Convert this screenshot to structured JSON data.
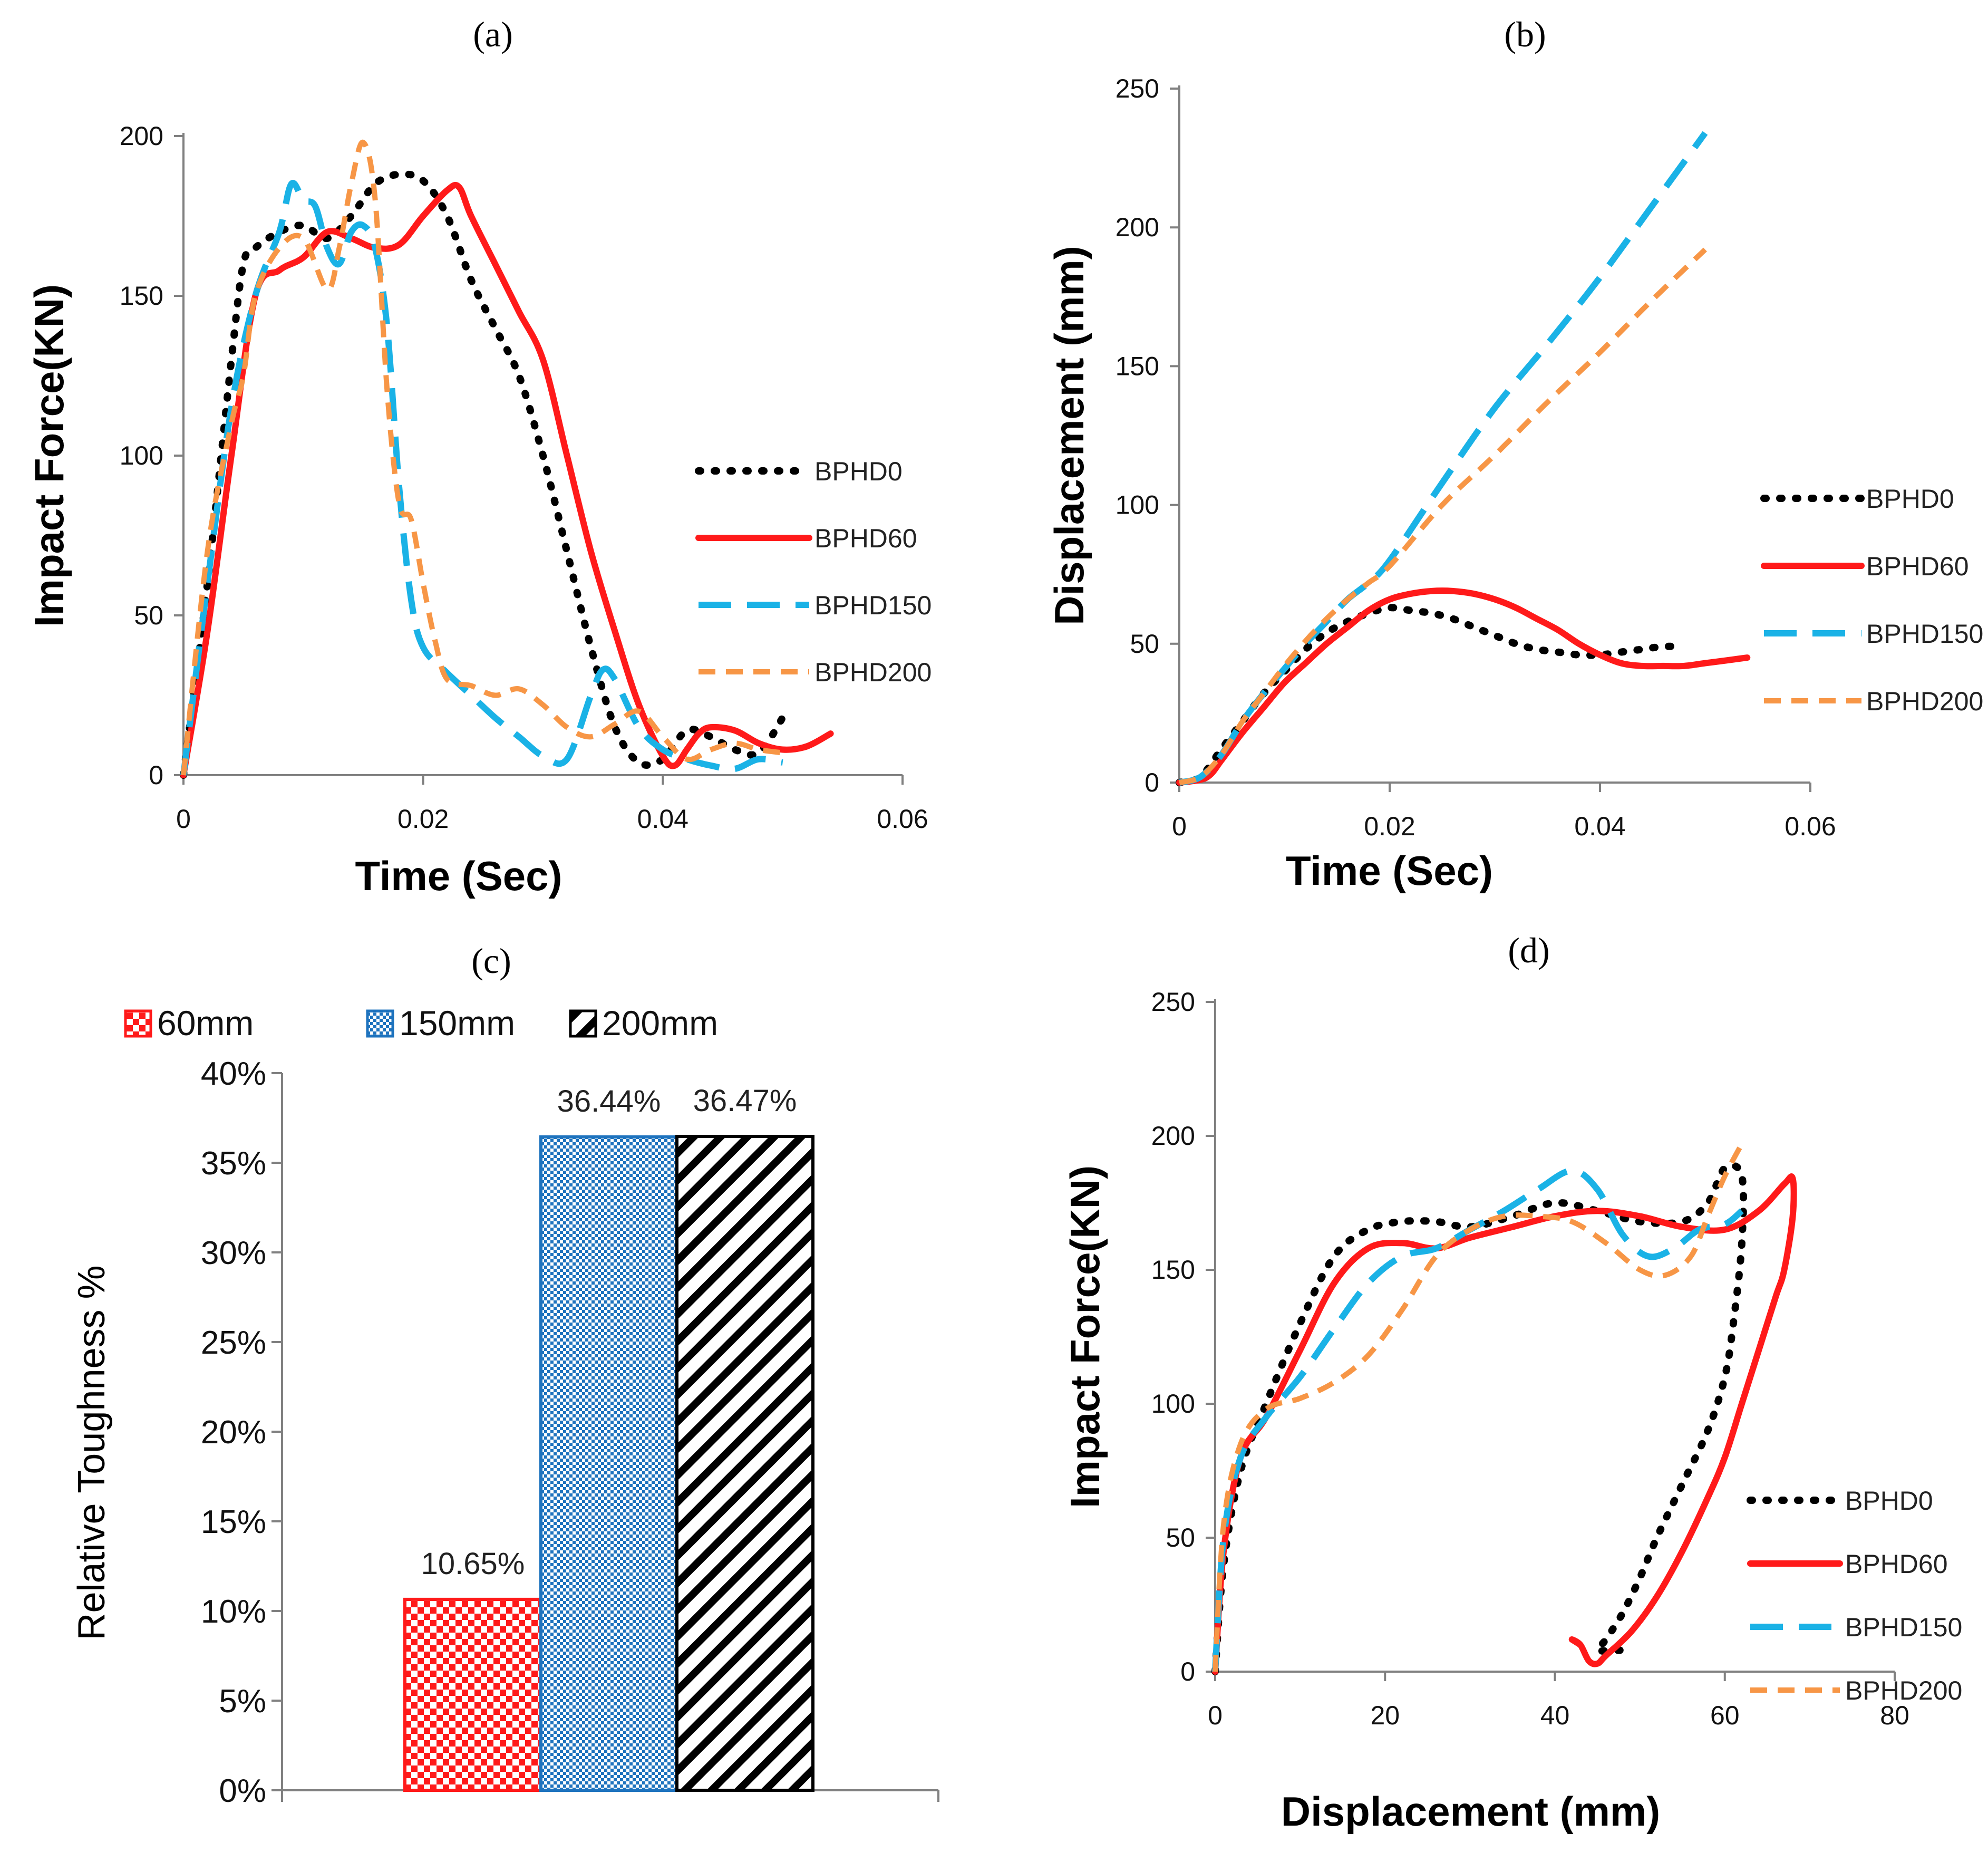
{
  "chart_data": [
    {
      "panel": "(a)",
      "type": "line",
      "xlabel": "Time (Sec)",
      "ylabel": "Impact Force(KN)",
      "xlim": [
        0,
        0.06
      ],
      "ylim": [
        0,
        200
      ],
      "xticks": [
        "0",
        "0.02",
        "0.04",
        "0.06"
      ],
      "yticks": [
        "0",
        "50",
        "100",
        "150",
        "200"
      ],
      "series": [
        {
          "name": "BPHD0",
          "color": "#000000",
          "style": "dotted",
          "x": [
            0,
            0.002,
            0.004,
            0.005,
            0.006,
            0.008,
            0.01,
            0.012,
            0.014,
            0.016,
            0.018,
            0.02,
            0.022,
            0.024,
            0.026,
            0.028,
            0.03,
            0.032,
            0.034,
            0.036,
            0.038,
            0.04,
            0.042,
            0.044,
            0.046,
            0.048,
            0.05
          ],
          "y": [
            0,
            60,
            130,
            160,
            165,
            170,
            172,
            168,
            175,
            185,
            188,
            186,
            175,
            155,
            140,
            125,
            100,
            70,
            40,
            15,
            4,
            5,
            14,
            12,
            8,
            7,
            18
          ]
        },
        {
          "name": "BPHD60",
          "color": "#ff1a1a",
          "style": "solid",
          "x": [
            0,
            0.002,
            0.004,
            0.006,
            0.008,
            0.01,
            0.012,
            0.014,
            0.016,
            0.018,
            0.02,
            0.022,
            0.023,
            0.024,
            0.026,
            0.028,
            0.03,
            0.032,
            0.034,
            0.036,
            0.038,
            0.04,
            0.041,
            0.042,
            0.043,
            0.044,
            0.046,
            0.048,
            0.05,
            0.052,
            0.054
          ],
          "y": [
            0,
            45,
            100,
            150,
            158,
            162,
            170,
            168,
            165,
            166,
            175,
            183,
            184,
            175,
            160,
            145,
            130,
            100,
            70,
            45,
            22,
            6,
            3,
            8,
            13,
            15,
            14,
            10,
            8,
            9,
            13
          ]
        },
        {
          "name": "BPHD150",
          "color": "#1ab2e6",
          "style": "dashed",
          "x": [
            0,
            0.002,
            0.004,
            0.006,
            0.008,
            0.009,
            0.01,
            0.011,
            0.012,
            0.013,
            0.014,
            0.015,
            0.016,
            0.017,
            0.018,
            0.019,
            0.02,
            0.022,
            0.024,
            0.026,
            0.028,
            0.03,
            0.032,
            0.034,
            0.035,
            0.036,
            0.038,
            0.04,
            0.042,
            0.044,
            0.046,
            0.048,
            0.05
          ],
          "y": [
            0,
            60,
            115,
            150,
            170,
            185,
            180,
            178,
            165,
            160,
            170,
            172,
            165,
            140,
            90,
            55,
            40,
            32,
            25,
            18,
            12,
            6,
            5,
            25,
            33,
            30,
            15,
            8,
            5,
            3,
            2,
            5,
            4
          ]
        },
        {
          "name": "BPHD200",
          "color": "#f79646",
          "style": "dashed-fine",
          "x": [
            0,
            0.002,
            0.004,
            0.005,
            0.006,
            0.008,
            0.01,
            0.012,
            0.013,
            0.014,
            0.015,
            0.016,
            0.017,
            0.018,
            0.019,
            0.02,
            0.021,
            0.022,
            0.024,
            0.026,
            0.028,
            0.03,
            0.032,
            0.034,
            0.036,
            0.038,
            0.04,
            0.042,
            0.044,
            0.046,
            0.048,
            0.05
          ],
          "y": [
            0,
            70,
            110,
            125,
            150,
            165,
            168,
            152,
            165,
            185,
            198,
            180,
            120,
            85,
            80,
            60,
            42,
            30,
            28,
            25,
            27,
            22,
            15,
            12,
            16,
            20,
            12,
            5,
            8,
            10,
            8,
            7
          ]
        }
      ]
    },
    {
      "panel": "(b)",
      "type": "line",
      "xlabel": "Time (Sec)",
      "ylabel": "Displacement (mm)",
      "xlim": [
        0,
        0.06
      ],
      "ylim": [
        0,
        250
      ],
      "xticks": [
        "0",
        "0.02",
        "0.04",
        "0.06"
      ],
      "yticks": [
        "0",
        "50",
        "100",
        "150",
        "200",
        "250"
      ],
      "series": [
        {
          "name": "BPHD0",
          "color": "#000000",
          "style": "dotted",
          "x": [
            0,
            0.002,
            0.004,
            0.006,
            0.008,
            0.01,
            0.012,
            0.014,
            0.016,
            0.018,
            0.02,
            0.022,
            0.024,
            0.026,
            0.028,
            0.03,
            0.032,
            0.034,
            0.036,
            0.038,
            0.04,
            0.042,
            0.044,
            0.046,
            0.048
          ],
          "y": [
            0,
            2,
            12,
            22,
            32,
            40,
            48,
            54,
            58,
            61,
            63,
            62,
            61,
            59,
            56,
            53,
            50,
            48,
            47,
            46,
            46,
            47,
            48,
            49,
            49
          ]
        },
        {
          "name": "BPHD60",
          "color": "#ff1a1a",
          "style": "solid",
          "x": [
            0,
            0.002,
            0.003,
            0.004,
            0.006,
            0.008,
            0.01,
            0.012,
            0.014,
            0.016,
            0.018,
            0.02,
            0.022,
            0.024,
            0.026,
            0.028,
            0.03,
            0.032,
            0.034,
            0.036,
            0.038,
            0.04,
            0.042,
            0.044,
            0.046,
            0.048,
            0.05,
            0.052,
            0.054
          ],
          "y": [
            0,
            1,
            3,
            8,
            18,
            27,
            36,
            43,
            50,
            56,
            62,
            66,
            68,
            69,
            69,
            68,
            66,
            63,
            59,
            55,
            50,
            46,
            43,
            42,
            42,
            42,
            43,
            44,
            45
          ]
        },
        {
          "name": "BPHD150",
          "color": "#1ab2e6",
          "style": "dashed",
          "x": [
            0,
            0.002,
            0.004,
            0.006,
            0.008,
            0.01,
            0.012,
            0.014,
            0.016,
            0.018,
            0.02,
            0.025,
            0.03,
            0.035,
            0.04,
            0.045,
            0.05
          ],
          "y": [
            0,
            2,
            10,
            22,
            32,
            41,
            50,
            58,
            66,
            72,
            80,
            108,
            135,
            158,
            182,
            208,
            234
          ]
        },
        {
          "name": "BPHD200",
          "color": "#f79646",
          "style": "dashed-fine",
          "x": [
            0,
            0.002,
            0.004,
            0.006,
            0.008,
            0.01,
            0.012,
            0.014,
            0.016,
            0.018,
            0.02,
            0.025,
            0.03,
            0.035,
            0.04,
            0.045,
            0.05
          ],
          "y": [
            0,
            2,
            10,
            22,
            32,
            42,
            51,
            59,
            66,
            72,
            78,
            100,
            118,
            137,
            155,
            174,
            192
          ]
        }
      ]
    },
    {
      "panel": "(c)",
      "type": "bar",
      "ylabel": "Relative Toughness %",
      "ylim": [
        0,
        40
      ],
      "yticks": [
        "0%",
        "5%",
        "10%",
        "15%",
        "20%",
        "25%",
        "30%",
        "35%",
        "40%"
      ],
      "series": [
        {
          "name": "60mm",
          "value": 10.65,
          "label": "10.65%",
          "color": "#ff1a1a",
          "pattern": "checker"
        },
        {
          "name": "150mm",
          "value": 36.44,
          "label": "36.44%",
          "color": "#1e73be",
          "pattern": "fine-checker"
        },
        {
          "name": "200mm",
          "value": 36.47,
          "label": "36.47%",
          "color": "#000000",
          "pattern": "diagonal"
        }
      ],
      "legend_position": "top"
    },
    {
      "panel": "(d)",
      "type": "line",
      "xlabel": "Displacement (mm)",
      "ylabel": "Impact Force(KN)",
      "xlim": [
        0,
        80
      ],
      "ylim": [
        0,
        250
      ],
      "xticks": [
        "0",
        "20",
        "40",
        "60",
        "80"
      ],
      "yticks": [
        "0",
        "50",
        "100",
        "150",
        "200",
        "250"
      ],
      "series": [
        {
          "name": "BPHD0",
          "color": "#000000",
          "style": "dotted",
          "x": [
            0,
            1,
            3,
            6,
            10,
            14,
            18,
            22,
            26,
            30,
            35,
            40,
            45,
            50,
            55,
            58,
            60,
            62,
            62,
            61,
            60,
            58,
            55,
            52,
            50,
            48,
            46,
            45,
            47,
            49
          ],
          "y": [
            0,
            40,
            75,
            100,
            130,
            155,
            165,
            168,
            168,
            166,
            170,
            175,
            172,
            168,
            168,
            175,
            188,
            185,
            160,
            130,
            110,
            90,
            70,
            50,
            35,
            22,
            12,
            8,
            8,
            8
          ]
        },
        {
          "name": "BPHD60",
          "color": "#ff1a1a",
          "style": "solid",
          "x": [
            0,
            1,
            3,
            6,
            10,
            14,
            18,
            22,
            26,
            30,
            35,
            40,
            45,
            50,
            55,
            60,
            64,
            67,
            68,
            68,
            67,
            66,
            64,
            62,
            60,
            58,
            55,
            52,
            49,
            46,
            45,
            44,
            43,
            42,
            43
          ],
          "y": [
            0,
            45,
            80,
            95,
            120,
            145,
            158,
            160,
            158,
            162,
            166,
            170,
            172,
            170,
            166,
            165,
            172,
            182,
            184,
            170,
            150,
            140,
            120,
            100,
            80,
            65,
            45,
            28,
            15,
            6,
            3,
            4,
            10,
            12,
            10
          ]
        },
        {
          "name": "BPHD150",
          "color": "#1ab2e6",
          "style": "dashed",
          "x": [
            0,
            1,
            3,
            6,
            10,
            14,
            18,
            22,
            26,
            30,
            34,
            38,
            42,
            45,
            48,
            51,
            54,
            57,
            60,
            62
          ],
          "y": [
            0,
            50,
            80,
            95,
            110,
            128,
            145,
            155,
            158,
            165,
            172,
            180,
            187,
            180,
            163,
            155,
            158,
            165,
            167,
            172
          ]
        },
        {
          "name": "BPHD200",
          "color": "#f79646",
          "style": "dashed-fine",
          "x": [
            0,
            1,
            3,
            6,
            10,
            14,
            18,
            22,
            26,
            30,
            34,
            38,
            42,
            46,
            50,
            53,
            56,
            58,
            60,
            62
          ],
          "y": [
            0,
            55,
            85,
            98,
            102,
            108,
            118,
            135,
            155,
            165,
            170,
            170,
            168,
            160,
            150,
            148,
            155,
            170,
            185,
            197
          ]
        }
      ]
    }
  ]
}
